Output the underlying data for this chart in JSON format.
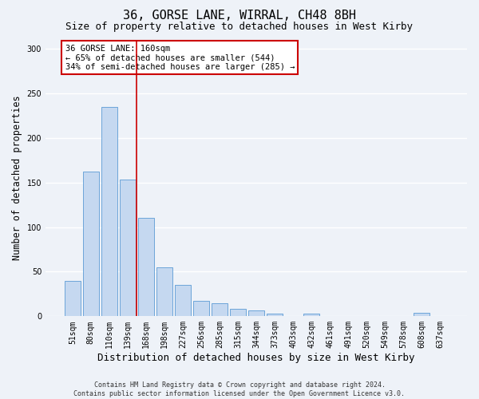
{
  "title": "36, GORSE LANE, WIRRAL, CH48 8BH",
  "subtitle": "Size of property relative to detached houses in West Kirby",
  "xlabel": "Distribution of detached houses by size in West Kirby",
  "ylabel": "Number of detached properties",
  "categories": [
    "51sqm",
    "80sqm",
    "110sqm",
    "139sqm",
    "168sqm",
    "198sqm",
    "227sqm",
    "256sqm",
    "285sqm",
    "315sqm",
    "344sqm",
    "373sqm",
    "403sqm",
    "432sqm",
    "461sqm",
    "491sqm",
    "520sqm",
    "549sqm",
    "578sqm",
    "608sqm",
    "637sqm"
  ],
  "values": [
    40,
    162,
    235,
    153,
    110,
    55,
    35,
    17,
    15,
    8,
    7,
    3,
    0,
    3,
    0,
    0,
    0,
    0,
    0,
    4,
    0
  ],
  "bar_color": "#c5d8f0",
  "bar_edge_color": "#5b9bd5",
  "vline_x_index": 4,
  "vline_color": "#cc0000",
  "annotation_text": "36 GORSE LANE: 160sqm\n← 65% of detached houses are smaller (544)\n34% of semi-detached houses are larger (285) →",
  "annotation_box_color": "#ffffff",
  "annotation_box_edge": "#cc0000",
  "footer_line1": "Contains HM Land Registry data © Crown copyright and database right 2024.",
  "footer_line2": "Contains public sector information licensed under the Open Government Licence v3.0.",
  "ylim": [
    0,
    310
  ],
  "background_color": "#eef2f8",
  "grid_color": "#ffffff",
  "title_fontsize": 11,
  "subtitle_fontsize": 9,
  "tick_fontsize": 7,
  "ylabel_fontsize": 8.5,
  "xlabel_fontsize": 9,
  "footer_fontsize": 6,
  "annotation_fontsize": 7.5
}
